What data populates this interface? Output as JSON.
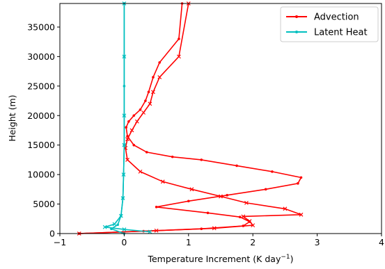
{
  "chart_data": {
    "type": "line",
    "xlabel": "Temperature Increment (K day",
    "xlabel_sup": "−1",
    "xlabel_close": ")",
    "ylabel": "Height (m)",
    "xlim": [
      -1,
      4
    ],
    "ylim": [
      0,
      39000
    ],
    "x_ticks": [
      -1,
      0,
      1,
      2,
      3,
      4
    ],
    "x_tick_labels": [
      "−1",
      "0",
      "1",
      "2",
      "3",
      "4"
    ],
    "y_ticks": [
      0,
      5000,
      10000,
      15000,
      20000,
      25000,
      30000,
      35000
    ],
    "y_tick_labels": [
      "0",
      "5000",
      "10000",
      "15000",
      "20000",
      "25000",
      "30000",
      "35000"
    ],
    "legend_position": "top-right",
    "series": [
      {
        "name": "Advection",
        "color": "#ff0000",
        "marker": "dot",
        "x": [
          -0.7,
          0.3,
          1.2,
          1.85,
          1.95,
          1.8,
          1.3,
          0.5,
          1.0,
          1.6,
          2.2,
          2.7,
          2.75,
          2.3,
          1.75,
          1.2,
          0.75,
          0.35,
          0.15,
          0.05,
          0.03,
          0.07,
          0.15,
          0.25,
          0.33,
          0.38,
          0.45,
          0.55,
          0.85,
          0.9
        ],
        "y": [
          0,
          400,
          800,
          1300,
          2000,
          2800,
          3500,
          4500,
          5500,
          6500,
          7500,
          8500,
          9500,
          10500,
          11500,
          12500,
          13000,
          13800,
          15000,
          16500,
          18000,
          19000,
          20000,
          21000,
          22500,
          24000,
          26500,
          29000,
          33000,
          39000
        ]
      },
      {
        "name": "",
        "color": "#ff0000",
        "marker": "x",
        "x": [
          -0.7,
          0.5,
          1.4,
          2.0,
          1.95,
          1.85,
          2.75,
          2.5,
          1.9,
          1.5,
          1.05,
          0.6,
          0.25,
          0.05,
          0.02,
          0.05,
          0.12,
          0.2,
          0.3,
          0.4,
          0.45,
          0.55,
          0.85,
          1.0
        ],
        "y": [
          0,
          500,
          900,
          1400,
          2100,
          2900,
          3200,
          4200,
          5200,
          6300,
          7500,
          8800,
          10500,
          12500,
          14500,
          16000,
          17500,
          19000,
          20500,
          22000,
          24000,
          26500,
          30000,
          39000
        ]
      },
      {
        "name": "Latent Heat",
        "color": "#00bfbf",
        "marker": "dot",
        "x": [
          0.0,
          -0.2,
          -0.1,
          -0.05,
          -0.02,
          -0.01,
          0.0,
          0.0,
          0.0,
          0.0,
          0.0
        ],
        "y": [
          0,
          800,
          1500,
          3000,
          6000,
          10000,
          15000,
          20000,
          25000,
          30000,
          39000
        ]
      },
      {
        "name": "",
        "color": "#00bfbf",
        "marker": "x",
        "x": [
          0.4,
          0.0,
          -0.3,
          -0.15,
          -0.05,
          -0.02,
          -0.01,
          0.0,
          0.0,
          0.0,
          0.0
        ],
        "y": [
          300,
          700,
          1100,
          1600,
          3000,
          6000,
          10000,
          15000,
          20000,
          30000,
          39000
        ]
      }
    ],
    "legend": [
      {
        "label": "Advection",
        "color": "#ff0000"
      },
      {
        "label": "Latent Heat",
        "color": "#00bfbf"
      }
    ]
  }
}
